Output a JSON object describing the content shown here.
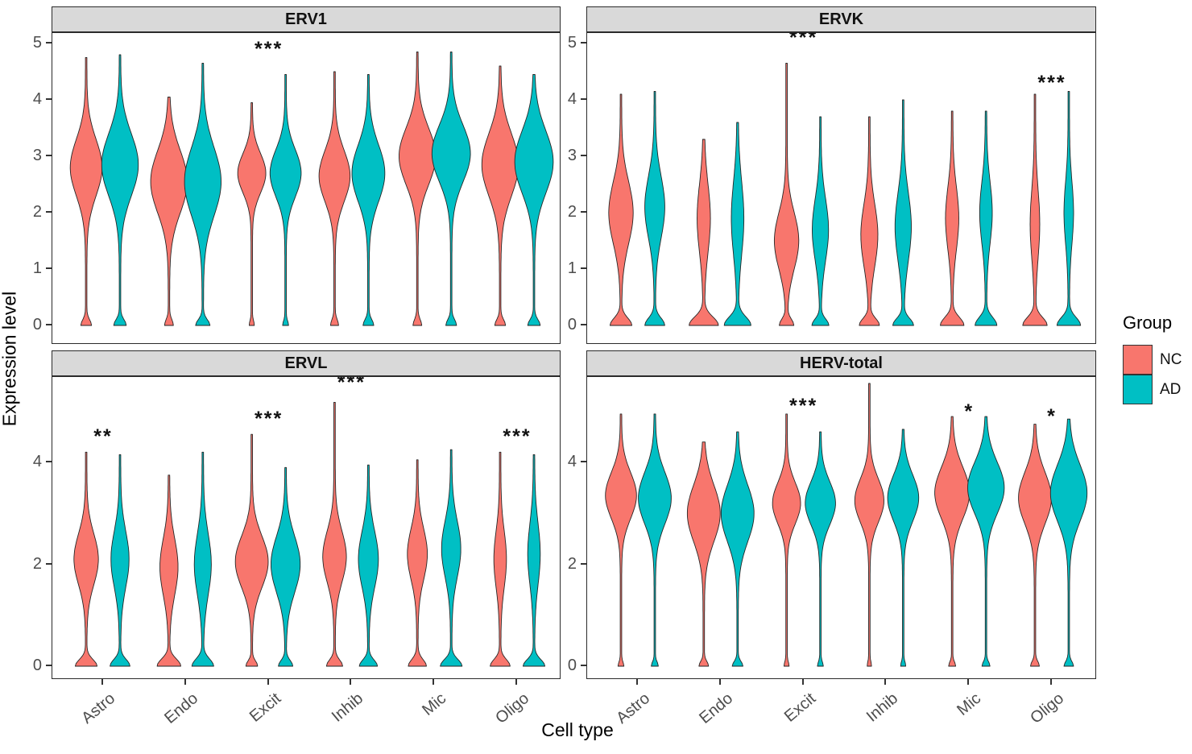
{
  "figure": {
    "y_axis_label": "Expression level",
    "x_axis_label": "Cell type"
  },
  "legend": {
    "title": "Group",
    "items": [
      {
        "label": "NC",
        "color": "#F8766D"
      },
      {
        "label": "AD",
        "color": "#00BFC4"
      }
    ]
  },
  "chart_data": [
    {
      "type": "violin",
      "title": "ERV1",
      "categories": [
        "Astro",
        "Endo",
        "Excit",
        "Inhib",
        "Mic",
        "Oligo"
      ],
      "groups": [
        "NC",
        "AD"
      ],
      "y_ticks": [
        0,
        1,
        2,
        3,
        4,
        5
      ],
      "y_range": [
        -0.35,
        5.19
      ],
      "significance": [
        {
          "category": "Excit",
          "label": "***",
          "y": 4.95
        }
      ],
      "violins": {
        "NC": [
          {
            "center": 2.8,
            "spread": 0.5,
            "width": 0.82,
            "max": 4.75,
            "zero_peak": 0.25,
            "zero_spread": 0.1
          },
          {
            "center": 2.55,
            "spread": 0.55,
            "width": 0.95,
            "max": 4.05,
            "zero_peak": 0.2,
            "zero_spread": 0.1
          },
          {
            "center": 2.7,
            "spread": 0.35,
            "width": 0.72,
            "max": 3.95,
            "zero_peak": 0.1,
            "zero_spread": 0.08
          },
          {
            "center": 2.65,
            "spread": 0.45,
            "width": 0.8,
            "max": 4.5,
            "zero_peak": 0.18,
            "zero_spread": 0.1
          },
          {
            "center": 3.0,
            "spread": 0.5,
            "width": 0.95,
            "max": 4.85,
            "zero_peak": 0.2,
            "zero_spread": 0.1
          },
          {
            "center": 2.85,
            "spread": 0.55,
            "width": 0.95,
            "max": 4.6,
            "zero_peak": 0.25,
            "zero_spread": 0.1
          }
        ],
        "AD": [
          {
            "center": 2.85,
            "spread": 0.55,
            "width": 0.95,
            "max": 4.8,
            "zero_peak": 0.3,
            "zero_spread": 0.1
          },
          {
            "center": 2.55,
            "spread": 0.6,
            "width": 0.95,
            "max": 4.65,
            "zero_peak": 0.35,
            "zero_spread": 0.1
          },
          {
            "center": 2.7,
            "spread": 0.42,
            "width": 0.8,
            "max": 4.45,
            "zero_peak": 0.12,
            "zero_spread": 0.08
          },
          {
            "center": 2.7,
            "spread": 0.5,
            "width": 0.85,
            "max": 4.45,
            "zero_peak": 0.25,
            "zero_spread": 0.1
          },
          {
            "center": 3.05,
            "spread": 0.5,
            "width": 1.0,
            "max": 4.85,
            "zero_peak": 0.25,
            "zero_spread": 0.1
          },
          {
            "center": 2.9,
            "spread": 0.55,
            "width": 1.0,
            "max": 4.45,
            "zero_peak": 0.3,
            "zero_spread": 0.1
          }
        ]
      }
    },
    {
      "type": "violin",
      "title": "ERVK",
      "categories": [
        "Astro",
        "Endo",
        "Excit",
        "Inhib",
        "Mic",
        "Oligo"
      ],
      "groups": [
        "NC",
        "AD"
      ],
      "y_ticks": [
        0,
        1,
        2,
        3,
        4,
        5
      ],
      "y_range": [
        -0.35,
        5.19
      ],
      "significance": [
        {
          "category": "Excit",
          "label": "***",
          "y": 5.15
        },
        {
          "category": "Oligo",
          "label": "***",
          "y": 4.35
        }
      ],
      "violins": {
        "NC": [
          {
            "center": 2.0,
            "spread": 0.55,
            "width": 0.62,
            "max": 4.1,
            "zero_peak": 0.55,
            "zero_spread": 0.13
          },
          {
            "center": 1.9,
            "spread": 0.6,
            "width": 0.32,
            "max": 3.3,
            "zero_peak": 0.75,
            "zero_spread": 0.15
          },
          {
            "center": 1.5,
            "spread": 0.5,
            "width": 0.62,
            "max": 4.65,
            "zero_peak": 0.35,
            "zero_spread": 0.11
          },
          {
            "center": 1.6,
            "spread": 0.55,
            "width": 0.42,
            "max": 3.7,
            "zero_peak": 0.5,
            "zero_spread": 0.12
          },
          {
            "center": 1.9,
            "spread": 0.55,
            "width": 0.32,
            "max": 3.8,
            "zero_peak": 0.6,
            "zero_spread": 0.14
          },
          {
            "center": 1.8,
            "spread": 0.6,
            "width": 0.22,
            "max": 4.1,
            "zero_peak": 0.62,
            "zero_spread": 0.14
          }
        ],
        "AD": [
          {
            "center": 2.1,
            "spread": 0.55,
            "width": 0.5,
            "max": 4.15,
            "zero_peak": 0.5,
            "zero_spread": 0.13
          },
          {
            "center": 1.9,
            "spread": 0.65,
            "width": 0.3,
            "max": 3.6,
            "zero_peak": 0.68,
            "zero_spread": 0.15
          },
          {
            "center": 1.7,
            "spread": 0.55,
            "width": 0.4,
            "max": 3.7,
            "zero_peak": 0.42,
            "zero_spread": 0.11
          },
          {
            "center": 1.75,
            "spread": 0.6,
            "width": 0.4,
            "max": 4.0,
            "zero_peak": 0.52,
            "zero_spread": 0.12
          },
          {
            "center": 2.0,
            "spread": 0.55,
            "width": 0.3,
            "max": 3.8,
            "zero_peak": 0.55,
            "zero_spread": 0.14
          },
          {
            "center": 2.0,
            "spread": 0.55,
            "width": 0.22,
            "max": 4.15,
            "zero_peak": 0.6,
            "zero_spread": 0.14
          }
        ]
      }
    },
    {
      "type": "violin",
      "title": "ERVL",
      "categories": [
        "Astro",
        "Endo",
        "Excit",
        "Inhib",
        "Mic",
        "Oligo"
      ],
      "groups": [
        "NC",
        "AD"
      ],
      "y_ticks": [
        0,
        2,
        4
      ],
      "y_range": [
        -0.27,
        5.68
      ],
      "significance": [
        {
          "category": "Astro",
          "label": "**",
          "y": 4.55
        },
        {
          "category": "Excit",
          "label": "***",
          "y": 4.9
        },
        {
          "category": "Inhib",
          "label": "***",
          "y": 5.62
        },
        {
          "category": "Oligo",
          "label": "***",
          "y": 4.55
        }
      ],
      "violins": {
        "NC": [
          {
            "center": 2.1,
            "spread": 0.5,
            "width": 0.62,
            "max": 4.2,
            "zero_peak": 0.55,
            "zero_spread": 0.13
          },
          {
            "center": 1.95,
            "spread": 0.55,
            "width": 0.45,
            "max": 3.75,
            "zero_peak": 0.6,
            "zero_spread": 0.14
          },
          {
            "center": 2.05,
            "spread": 0.5,
            "width": 0.85,
            "max": 4.55,
            "zero_peak": 0.28,
            "zero_spread": 0.1
          },
          {
            "center": 2.15,
            "spread": 0.5,
            "width": 0.6,
            "max": 5.18,
            "zero_peak": 0.4,
            "zero_spread": 0.12
          },
          {
            "center": 2.2,
            "spread": 0.5,
            "width": 0.5,
            "max": 4.05,
            "zero_peak": 0.45,
            "zero_spread": 0.13
          },
          {
            "center": 2.1,
            "spread": 0.55,
            "width": 0.3,
            "max": 4.2,
            "zero_peak": 0.5,
            "zero_spread": 0.13
          }
        ],
        "AD": [
          {
            "center": 2.1,
            "spread": 0.55,
            "width": 0.45,
            "max": 4.15,
            "zero_peak": 0.5,
            "zero_spread": 0.13
          },
          {
            "center": 2.0,
            "spread": 0.6,
            "width": 0.42,
            "max": 4.2,
            "zero_peak": 0.55,
            "zero_spread": 0.14
          },
          {
            "center": 2.0,
            "spread": 0.55,
            "width": 0.75,
            "max": 3.9,
            "zero_peak": 0.35,
            "zero_spread": 0.11
          },
          {
            "center": 2.1,
            "spread": 0.55,
            "width": 0.5,
            "max": 3.95,
            "zero_peak": 0.45,
            "zero_spread": 0.12
          },
          {
            "center": 2.3,
            "spread": 0.55,
            "width": 0.48,
            "max": 4.25,
            "zero_peak": 0.55,
            "zero_spread": 0.13
          },
          {
            "center": 2.2,
            "spread": 0.6,
            "width": 0.3,
            "max": 4.15,
            "zero_peak": 0.55,
            "zero_spread": 0.13
          }
        ]
      }
    },
    {
      "type": "violin",
      "title": "HERV-total",
      "categories": [
        "Astro",
        "Endo",
        "Excit",
        "Inhib",
        "Mic",
        "Oligo"
      ],
      "groups": [
        "NC",
        "AD"
      ],
      "y_ticks": [
        0,
        2,
        4
      ],
      "y_range": [
        -0.27,
        5.68
      ],
      "significance": [
        {
          "category": "Excit",
          "label": "***",
          "y": 5.15
        },
        {
          "category": "Mic",
          "label": "*",
          "y": 5.05
        },
        {
          "category": "Oligo",
          "label": "*",
          "y": 4.95
        }
      ],
      "violins": {
        "NC": [
          {
            "center": 3.35,
            "spread": 0.45,
            "width": 0.8,
            "max": 4.95,
            "zero_peak": 0.12,
            "zero_spread": 0.08
          },
          {
            "center": 3.0,
            "spread": 0.55,
            "width": 0.85,
            "max": 4.4,
            "zero_peak": 0.22,
            "zero_spread": 0.09
          },
          {
            "center": 3.2,
            "spread": 0.4,
            "width": 0.72,
            "max": 4.95,
            "zero_peak": 0.1,
            "zero_spread": 0.08
          },
          {
            "center": 3.25,
            "spread": 0.42,
            "width": 0.75,
            "max": 5.55,
            "zero_peak": 0.08,
            "zero_spread": 0.08
          },
          {
            "center": 3.4,
            "spread": 0.5,
            "width": 0.9,
            "max": 4.9,
            "zero_peak": 0.15,
            "zero_spread": 0.08
          },
          {
            "center": 3.3,
            "spread": 0.5,
            "width": 0.85,
            "max": 4.75,
            "zero_peak": 0.2,
            "zero_spread": 0.09
          }
        ],
        "AD": [
          {
            "center": 3.3,
            "spread": 0.5,
            "width": 0.85,
            "max": 4.95,
            "zero_peak": 0.15,
            "zero_spread": 0.08
          },
          {
            "center": 3.0,
            "spread": 0.55,
            "width": 0.85,
            "max": 4.6,
            "zero_peak": 0.25,
            "zero_spread": 0.09
          },
          {
            "center": 3.2,
            "spread": 0.42,
            "width": 0.78,
            "max": 4.6,
            "zero_peak": 0.12,
            "zero_spread": 0.08
          },
          {
            "center": 3.3,
            "spread": 0.45,
            "width": 0.8,
            "max": 4.65,
            "zero_peak": 0.1,
            "zero_spread": 0.08
          },
          {
            "center": 3.5,
            "spread": 0.5,
            "width": 0.95,
            "max": 4.9,
            "zero_peak": 0.18,
            "zero_spread": 0.08
          },
          {
            "center": 3.4,
            "spread": 0.55,
            "width": 0.95,
            "max": 4.85,
            "zero_peak": 0.22,
            "zero_spread": 0.09
          }
        ]
      }
    }
  ]
}
